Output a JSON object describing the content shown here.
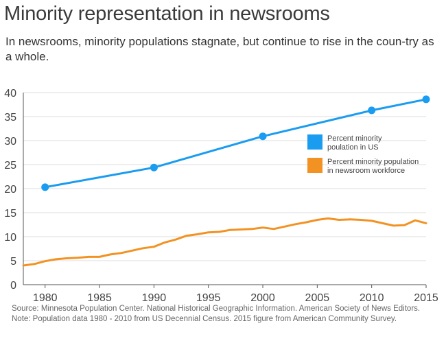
{
  "chart_data": {
    "type": "line",
    "title": "Minority representation in newsrooms",
    "subtitle": "In newsrooms, minority populations stagnate, but continue to rise in the coun-try as a whole.",
    "xlim": [
      1978,
      2015
    ],
    "ylim": [
      0,
      40
    ],
    "x_ticks": [
      1980,
      1985,
      1990,
      1995,
      2000,
      2005,
      2010,
      2015
    ],
    "y_ticks": [
      0,
      5,
      10,
      15,
      20,
      25,
      30,
      35,
      40
    ],
    "grid": true,
    "legend_position": "right",
    "series": [
      {
        "name": "Percent minority poulation in US",
        "legend_lines": [
          "Percent minority",
          "poulation in US"
        ],
        "color": "#1a9cf0",
        "markers": true,
        "x": [
          1980,
          1990,
          2000,
          2010,
          2015
        ],
        "y": [
          20.3,
          24.4,
          30.9,
          36.3,
          38.6
        ]
      },
      {
        "name": "Percent minority population in newsroom workforce",
        "legend_lines": [
          "Percent minority population",
          "in newsroom workforce"
        ],
        "color": "#f29222",
        "markers": false,
        "x": [
          1978,
          1979,
          1980,
          1981,
          1982,
          1983,
          1984,
          1985,
          1986,
          1987,
          1988,
          1989,
          1990,
          1991,
          1992,
          1993,
          1994,
          1995,
          1996,
          1997,
          1998,
          1999,
          2000,
          2001,
          2002,
          2003,
          2004,
          2005,
          2006,
          2007,
          2008,
          2009,
          2010,
          2011,
          2012,
          2013,
          2014,
          2015
        ],
        "y": [
          4.0,
          4.3,
          4.9,
          5.3,
          5.5,
          5.6,
          5.8,
          5.8,
          6.3,
          6.6,
          7.1,
          7.6,
          7.9,
          8.8,
          9.4,
          10.2,
          10.5,
          10.9,
          11.0,
          11.4,
          11.5,
          11.6,
          11.9,
          11.6,
          12.1,
          12.6,
          13.0,
          13.5,
          13.8,
          13.5,
          13.6,
          13.5,
          13.3,
          12.8,
          12.3,
          12.4,
          13.4,
          12.8
        ]
      }
    ]
  },
  "source_note": "Source: Minnesota Population Center. National Historical Geographic Information. American Society of News Editors.",
  "data_note": "Note: Population data 1980 - 2010 from US Decennial Census. 2015 figure from American Community Survey."
}
